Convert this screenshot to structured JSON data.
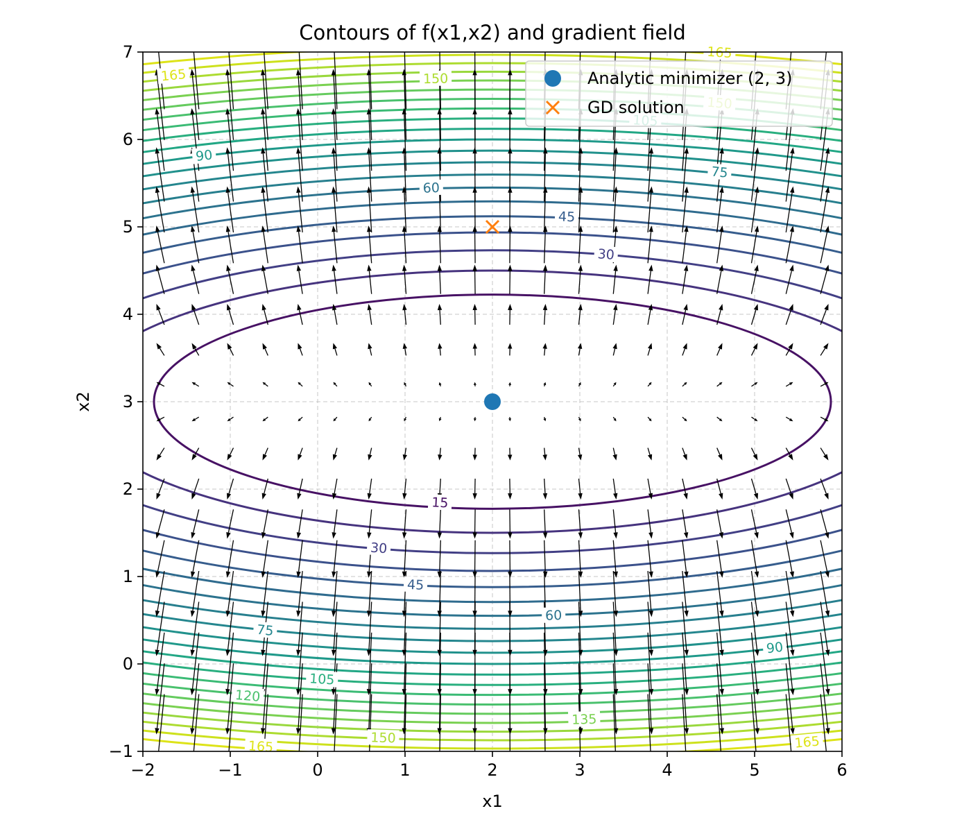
{
  "chart_data": {
    "type": "contour",
    "title": "Contours of f(x1,x2) and gradient field",
    "xlabel": "x1",
    "ylabel": "x2",
    "xlim": [
      -2,
      6
    ],
    "ylim": [
      -1,
      7
    ],
    "xticks": [
      -2,
      -1,
      0,
      1,
      2,
      3,
      4,
      5,
      6
    ],
    "yticks": [
      -1,
      0,
      1,
      2,
      3,
      4,
      5,
      6,
      7
    ],
    "xtick_labels": [
      "−2",
      "−1",
      "0",
      "1",
      "2",
      "3",
      "4",
      "5",
      "6"
    ],
    "ytick_labels": [
      "−1",
      "0",
      "1",
      "2",
      "3",
      "4",
      "5",
      "6",
      "7"
    ],
    "grid": true,
    "function": {
      "a": 1,
      "b": 10,
      "center": [
        2,
        3
      ],
      "comment_free": true
    },
    "contour_levels": [
      15,
      22.5,
      30,
      37.5,
      45,
      52.5,
      60,
      67.5,
      75,
      82.5,
      90,
      97.5,
      105,
      112.5,
      120,
      127.5,
      135,
      142.5,
      150,
      157.5,
      165
    ],
    "contour_colors": {
      "15": "#471164",
      "22.5": "#46337e",
      "30": "#423f85",
      "37.5": "#3b518b",
      "45": "#365d8d",
      "52.5": "#2f6b8e",
      "60": "#2c738e",
      "67.5": "#277f8e",
      "75": "#24868e",
      "82.5": "#21918c",
      "90": "#1f998a",
      "97.5": "#22a785",
      "105": "#29af7f",
      "112.5": "#3bbb75",
      "120": "#4ac16d",
      "127.5": "#65cb5e",
      "135": "#7ad151",
      "142.5": "#99d83d",
      "150": "#addc30",
      "157.5": "#cde11d",
      "165": "#dde318"
    },
    "contour_labels": [
      {
        "text": "15",
        "level": 15,
        "x": 1.4,
        "y": 1.85
      },
      {
        "text": "30",
        "level": 30,
        "x": 3.3,
        "y": 4.69
      },
      {
        "text": "30",
        "level": 30,
        "x": 0.7,
        "y": 1.33
      },
      {
        "text": "45",
        "level": 45,
        "x": 2.85,
        "y": 5.12
      },
      {
        "text": "45",
        "level": 45,
        "x": 1.12,
        "y": 0.91
      },
      {
        "text": "60",
        "level": 60,
        "x": 1.3,
        "y": 5.45
      },
      {
        "text": "60",
        "level": 60,
        "x": 2.7,
        "y": 0.56
      },
      {
        "text": "75",
        "level": 75,
        "x": 4.6,
        "y": 5.63
      },
      {
        "text": "75",
        "level": 75,
        "x": -0.6,
        "y": 0.39
      },
      {
        "text": "90",
        "level": 90,
        "x": -1.3,
        "y": 5.82
      },
      {
        "text": "90",
        "level": 90,
        "x": 5.23,
        "y": 0.19
      },
      {
        "text": "105",
        "level": 105,
        "x": 3.75,
        "y": 6.22
      },
      {
        "text": "105",
        "level": 105,
        "x": 0.05,
        "y": -0.17
      },
      {
        "text": "120",
        "level": 120,
        "x": -0.8,
        "y": -0.36
      },
      {
        "text": "135",
        "level": 135,
        "x": 3.05,
        "y": -0.63
      },
      {
        "text": "150",
        "level": 150,
        "x": 1.35,
        "y": 6.7
      },
      {
        "text": "150",
        "level": 150,
        "x": 4.6,
        "y": 6.42
      },
      {
        "text": "150",
        "level": 150,
        "x": 0.75,
        "y": -0.84
      },
      {
        "text": "165",
        "level": 165,
        "x": -1.65,
        "y": 6.74
      },
      {
        "text": "165",
        "level": 165,
        "x": 5.6,
        "y": -0.89
      },
      {
        "text": "165",
        "level": 165,
        "x": -0.65,
        "y": -0.94
      },
      {
        "text": "165",
        "level": 165,
        "x": 4.6,
        "y": 7.0
      }
    ],
    "quiver": {
      "x_start": -1.8,
      "x_end": 5.8,
      "y_start": -0.8,
      "y_end": 6.8,
      "n": 20,
      "color": "#000000"
    },
    "points": [
      {
        "name": "Analytic minimizer (2, 3)",
        "x": 2,
        "y": 3,
        "marker": "circle",
        "color": "#1f77b4"
      },
      {
        "name": "GD solution",
        "x": 2,
        "y": 5,
        "marker": "x",
        "color": "#ff7f0e"
      }
    ],
    "legend": {
      "position": "top-right",
      "entries": [
        {
          "label": "Analytic minimizer (2, 3)",
          "marker": "circle",
          "color": "#1f77b4"
        },
        {
          "label": "GD solution",
          "marker": "x",
          "color": "#ff7f0e"
        }
      ]
    }
  }
}
